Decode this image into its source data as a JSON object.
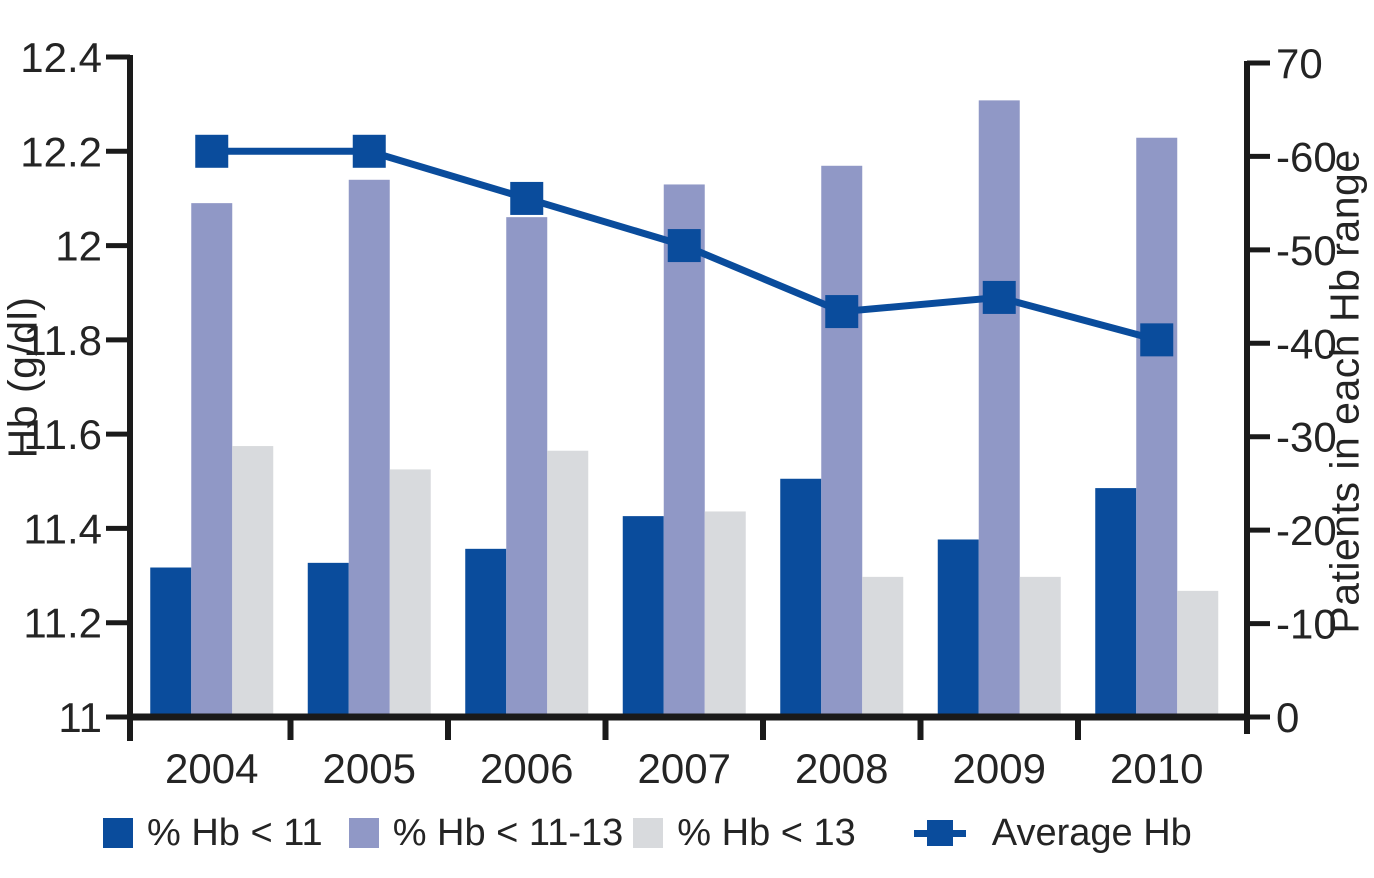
{
  "chart_data": {
    "type": "combo-bar-line-dual-axis",
    "grid": "off",
    "legend_position": "bottom",
    "categories": [
      "2004",
      "2005",
      "2006",
      "2007",
      "2008",
      "2009",
      "2010"
    ],
    "bar_series": [
      {
        "key": "pct-hb-lt-11",
        "name": "% Hb < 11",
        "color": "dark_blue",
        "axis": "right",
        "values": [
          16,
          16.5,
          18,
          21.5,
          25.5,
          19,
          24.5
        ]
      },
      {
        "key": "pct-hb-11-13",
        "name": "% Hb < 11-13",
        "color": "purple",
        "axis": "right",
        "values": [
          55,
          57.5,
          53.5,
          57,
          59,
          66,
          62
        ]
      },
      {
        "key": "pct-hb-lt-13",
        "name": "% Hb < 13",
        "color": "light_gray",
        "axis": "right",
        "values": [
          29,
          26.5,
          28.5,
          22,
          15,
          15,
          13.5
        ]
      }
    ],
    "line_series": {
      "key": "average-hb",
      "name": "Average Hb",
      "color": "dark_blue",
      "axis": "left",
      "values": [
        12.2,
        12.2,
        12.1,
        12.0,
        11.86,
        11.89,
        11.8
      ]
    },
    "left_axis": {
      "label": "Hb (g/dl)",
      "min": 11,
      "max": 12.4,
      "ticks": [
        12.4,
        12.2,
        12,
        11.8,
        11.6,
        11.4,
        11.2,
        11
      ],
      "tick_labels": [
        "12.4",
        "12.2",
        "12",
        "11.8",
        "11.6",
        "11.4",
        "11.2",
        "11"
      ]
    },
    "right_axis": {
      "label": "Patients in each Hb range",
      "min": 0,
      "max": 70,
      "ticks": [
        70,
        60,
        50,
        40,
        30,
        20,
        10,
        0
      ],
      "tick_labels": [
        "70",
        "-60",
        "-50",
        "-40",
        "-30",
        "-20",
        "-10",
        "0"
      ]
    },
    "legend": [
      {
        "label": "% Hb < 11",
        "swatch": "square",
        "color": "dark_blue"
      },
      {
        "label": "% Hb < 11-13",
        "swatch": "square",
        "color": "purple"
      },
      {
        "label": "% Hb < 13",
        "swatch": "square",
        "color": "light_gray"
      },
      {
        "label": "Average Hb",
        "swatch": "line-marker",
        "color": "dark_blue"
      }
    ],
    "colors": {
      "dark_blue": "#0a4c9c",
      "purple": "#9098c6",
      "light_gray": "#d8dadd",
      "axis": "#1a1a1a",
      "text": "#242424"
    }
  }
}
